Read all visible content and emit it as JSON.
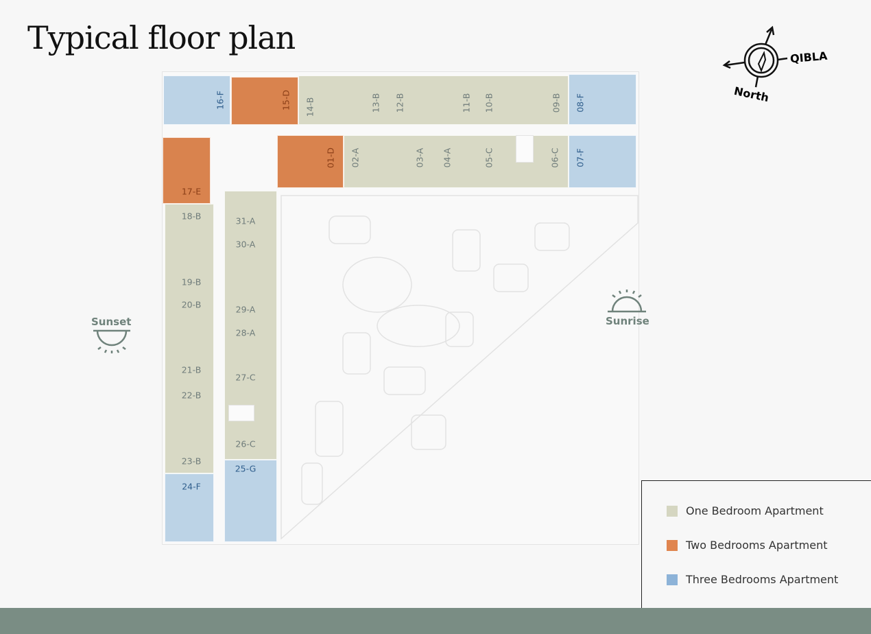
{
  "title": "Typical floor plan",
  "compass": {
    "qibla": "QIBLA",
    "north": "North"
  },
  "orientation": {
    "sunset": "Sunset",
    "sunrise": "Sunrise"
  },
  "colors": {
    "one": "#d8d9c5",
    "two": "#d9834e",
    "three": "#bcd3e6",
    "legend_one": "#d5d6c1",
    "legend_two": "#e0854f",
    "legend_three": "#8db3d8",
    "band": "#7a8d84"
  },
  "legend": [
    {
      "label": "One Bedroom Apartment",
      "type": "one"
    },
    {
      "label": "Two Bedrooms Apartment",
      "type": "two"
    },
    {
      "label": "Three Bedrooms Apartment",
      "type": "three"
    }
  ],
  "units": [
    "16-F",
    "15-D",
    "14-B",
    "13-B",
    "12-B",
    "11-B",
    "10-B",
    "09-B",
    "08-F",
    "17-E",
    "01-D",
    "02-A",
    "03-A",
    "04-A",
    "05-C",
    "06-C",
    "07-F",
    "18-B",
    "19-B",
    "20-B",
    "21-B",
    "22-B",
    "23-B",
    "24-F",
    "31-A",
    "30-A",
    "29-A",
    "28-A",
    "27-C",
    "26-C",
    "25-G"
  ]
}
